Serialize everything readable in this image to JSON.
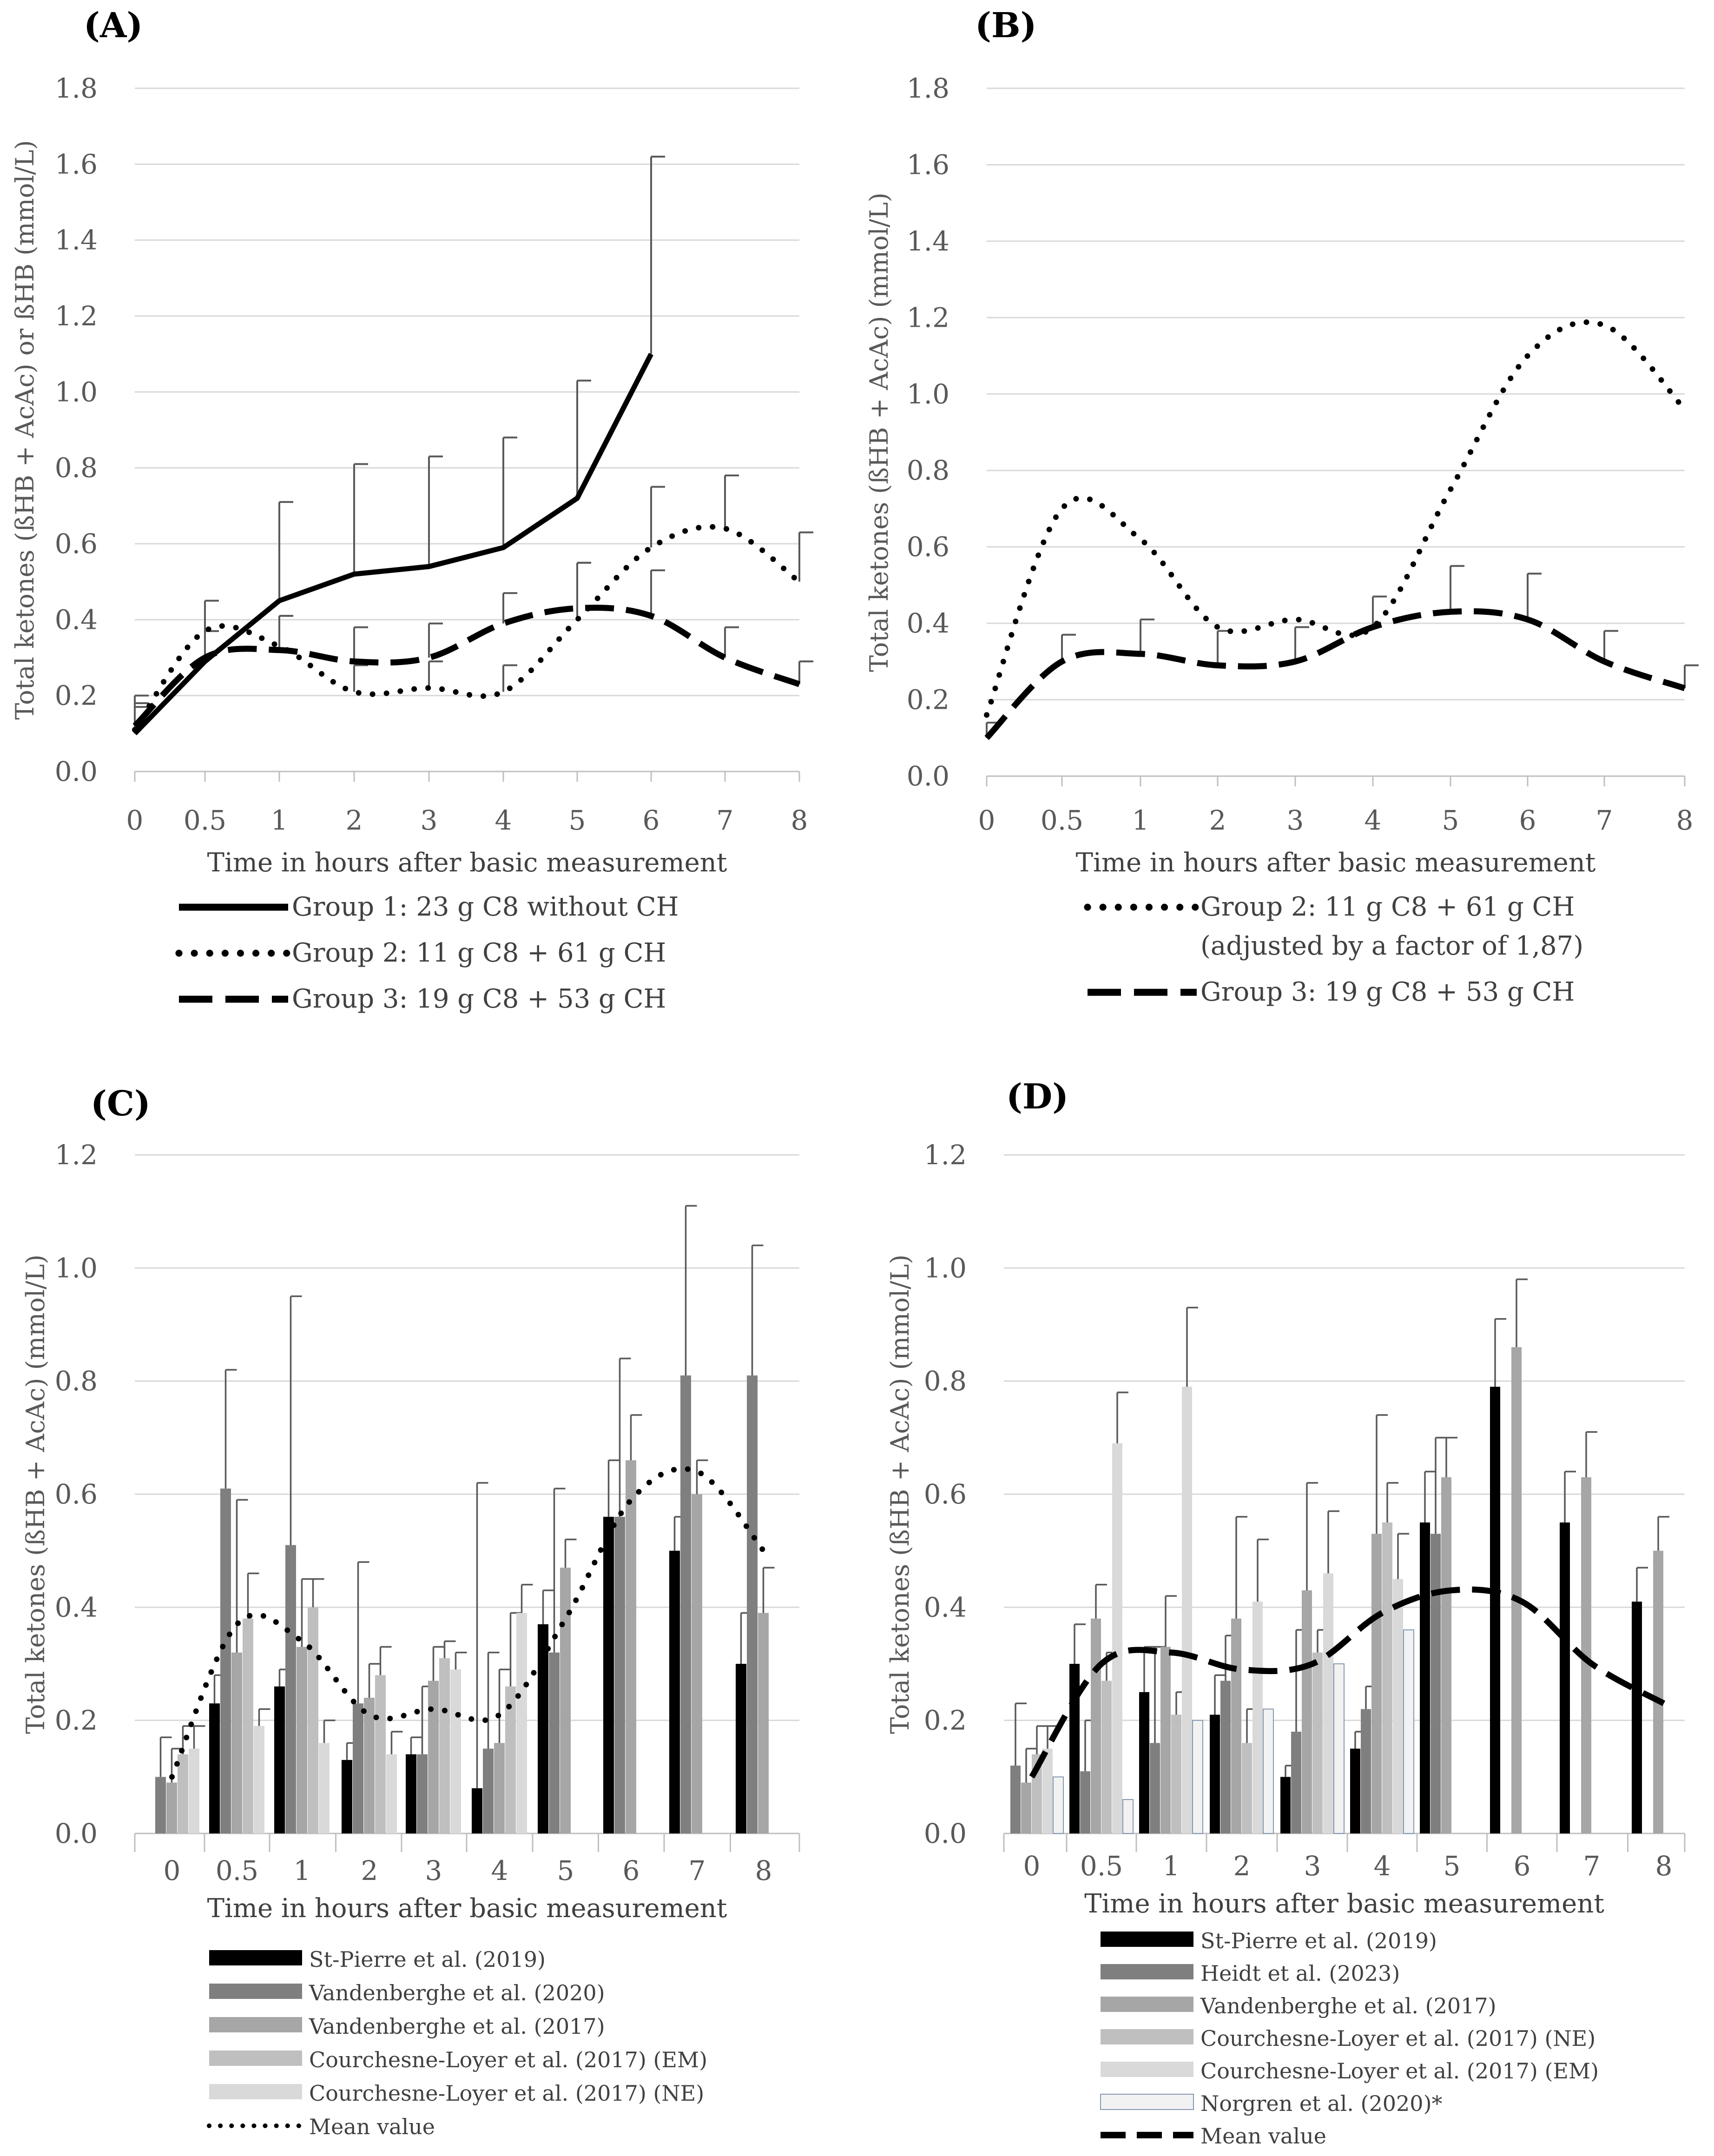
{
  "chart_data": [
    {
      "panel": "(A)",
      "type": "line",
      "ylabel": "Total ketones (ßHB + AcAc) or ßHB (mmol/L)",
      "xlabel": "Time in hours after basic measurement",
      "x": [
        0,
        0.5,
        1,
        2,
        3,
        4,
        5,
        6,
        7,
        8
      ],
      "tick_labels": [
        "0",
        "0.5",
        "1",
        "2",
        "3",
        "4",
        "5",
        "6",
        "7",
        "8"
      ],
      "ylim": [
        0,
        1.8
      ],
      "yticks": [
        "0.0",
        "0.2",
        "0.4",
        "0.6",
        "0.8",
        "1.0",
        "1.2",
        "1.4",
        "1.6",
        "1.8"
      ],
      "grid": true,
      "legend_position": "bottom",
      "series": [
        {
          "name": "Group 1: 23 g C8 without CH",
          "style": "solid",
          "x": [
            0,
            0.5,
            1,
            2,
            3,
            4,
            5,
            6
          ],
          "values": [
            0.1,
            0.29,
            0.45,
            0.52,
            0.54,
            0.59,
            0.72,
            1.1
          ],
          "error": [
            0.1,
            0.16,
            0.26,
            0.29,
            0.29,
            0.29,
            0.31,
            0.52
          ]
        },
        {
          "name": "Group 2: 11 g C8 + 61 g CH",
          "style": "dotted",
          "x": [
            0,
            0.5,
            1,
            2,
            3,
            4,
            5,
            6,
            7,
            8
          ],
          "values": [
            0.11,
            0.37,
            0.33,
            0.21,
            0.22,
            0.21,
            0.4,
            0.59,
            0.64,
            0.5
          ],
          "error": [
            0.07,
            0.08,
            0.08,
            0.07,
            0.07,
            0.07,
            0.15,
            0.16,
            0.14,
            0.13
          ]
        },
        {
          "name": "Group 3: 19 g C8 + 53 g CH",
          "style": "dashed",
          "x": [
            0,
            0.5,
            1,
            2,
            3,
            4,
            5,
            6,
            7,
            8
          ],
          "values": [
            0.12,
            0.3,
            0.32,
            0.29,
            0.3,
            0.39,
            0.43,
            0.41,
            0.3,
            0.23
          ],
          "error": [
            0.05,
            0.07,
            0.09,
            0.09,
            0.09,
            0.08,
            0.12,
            0.12,
            0.08,
            0.06
          ]
        }
      ]
    },
    {
      "panel": "(B)",
      "type": "line",
      "ylabel": "Total ketones (ßHB + AcAc) (mmol/L)",
      "xlabel": "Time in hours after basic measurement",
      "x": [
        0,
        0.5,
        1,
        2,
        3,
        4,
        5,
        6,
        7,
        8
      ],
      "tick_labels": [
        "0",
        "0.5",
        "1",
        "2",
        "3",
        "4",
        "5",
        "6",
        "7",
        "8"
      ],
      "ylim": [
        0,
        1.8
      ],
      "yticks": [
        "0.0",
        "0.2",
        "0.4",
        "0.6",
        "0.8",
        "1.0",
        "1.2",
        "1.4",
        "1.6",
        "1.8"
      ],
      "grid": true,
      "legend_position": "bottom",
      "series": [
        {
          "name": "Group 2: 11 g C8 + 61 g CH",
          "name2": "(adjusted by a factor of 1,87)",
          "style": "dotted",
          "x": [
            0,
            0.5,
            1,
            2,
            3,
            4,
            5,
            6,
            7,
            8
          ],
          "values": [
            0.16,
            0.7,
            0.62,
            0.39,
            0.41,
            0.39,
            0.75,
            1.1,
            1.18,
            0.96
          ],
          "error": []
        },
        {
          "name": "Group 3: 19 g C8 + 53 g CH",
          "style": "dashed",
          "x": [
            0,
            0.5,
            1,
            2,
            3,
            4,
            5,
            6,
            7,
            8
          ],
          "values": [
            0.1,
            0.3,
            0.32,
            0.29,
            0.3,
            0.39,
            0.43,
            0.41,
            0.3,
            0.23
          ],
          "error": [
            0.04,
            0.07,
            0.09,
            0.09,
            0.09,
            0.08,
            0.12,
            0.12,
            0.08,
            0.06
          ]
        }
      ]
    },
    {
      "panel": "(C)",
      "type": "bar",
      "ylabel": "Total ketones (ßHB + AcAc) (mmol/L)",
      "xlabel": "Time in hours after basic measurement",
      "categories": [
        "0",
        "0.5",
        "1",
        "2",
        "3",
        "4",
        "5",
        "6",
        "7",
        "8"
      ],
      "ylim": [
        0,
        1.2
      ],
      "yticks": [
        "0.0",
        "0.2",
        "0.4",
        "0.6",
        "0.8",
        "1.0",
        "1.2"
      ],
      "grid": true,
      "legend_position": "bottom",
      "series": [
        {
          "name": "St-Pierre et al. (2019)",
          "color": "#000000",
          "values": [
            null,
            0.23,
            0.26,
            0.13,
            0.14,
            0.08,
            0.37,
            0.56,
            0.5,
            0.3
          ],
          "error": [
            null,
            0.05,
            0.03,
            0.03,
            0.03,
            0.54,
            0.06,
            0.1,
            0.06,
            0.09
          ]
        },
        {
          "name": "Vandenberghe et al. (2020)",
          "color": "#7f7f7f",
          "values": [
            0.1,
            0.61,
            0.51,
            0.23,
            0.14,
            0.15,
            0.32,
            0.56,
            0.81,
            0.81
          ],
          "error": [
            0.07,
            0.21,
            0.44,
            0.25,
            0.12,
            0.17,
            0.29,
            0.28,
            0.3,
            0.23
          ]
        },
        {
          "name": "Vandenberghe et al. (2017)",
          "color": "#a6a6a6",
          "values": [
            0.09,
            0.32,
            0.33,
            0.24,
            0.27,
            0.16,
            0.47,
            0.66,
            0.6,
            0.39
          ],
          "error": [
            0.06,
            0.27,
            0.12,
            0.06,
            0.06,
            0.13,
            0.05,
            0.08,
            0.06,
            0.08
          ]
        },
        {
          "name": "Courchesne-Loyer et al. (2017) (EM)",
          "color": "#bfbfbf",
          "values": [
            0.14,
            0.38,
            0.4,
            0.28,
            0.31,
            0.26,
            null,
            null,
            null,
            null
          ],
          "error": [
            0.05,
            0.08,
            0.05,
            0.05,
            0.03,
            0.13,
            null,
            null,
            null,
            null
          ]
        },
        {
          "name": "Courchesne-Loyer et al. (2017) (NE)",
          "color": "#d9d9d9",
          "values": [
            0.15,
            0.19,
            0.16,
            0.14,
            0.29,
            0.39,
            null,
            null,
            null,
            null
          ],
          "error": [
            0.04,
            0.03,
            0.04,
            0.04,
            0.03,
            0.05,
            null,
            null,
            null,
            null
          ]
        },
        {
          "name": "Mean value",
          "style": "dotted",
          "kind": "line",
          "values": [
            0.1,
            0.37,
            0.34,
            0.21,
            0.22,
            0.21,
            0.38,
            0.59,
            0.64,
            0.5
          ]
        }
      ]
    },
    {
      "panel": "(D)",
      "type": "bar",
      "ylabel": "Total ketones (ßHB + AcAc) (mmol/L)",
      "xlabel": "Time in hours after basic measurement",
      "categories": [
        "0",
        "0.5",
        "1",
        "2",
        "3",
        "4",
        "5",
        "6",
        "7",
        "8"
      ],
      "ylim": [
        0,
        1.2
      ],
      "yticks": [
        "0.0",
        "0.2",
        "0.4",
        "0.6",
        "0.8",
        "1.0",
        "1.2"
      ],
      "grid": true,
      "legend_position": "bottom",
      "series": [
        {
          "name": "St-Pierre et al. (2019)",
          "color": "#000000",
          "values": [
            null,
            0.3,
            0.25,
            0.21,
            0.1,
            0.15,
            0.55,
            0.79,
            0.55,
            0.41
          ],
          "error": [
            null,
            0.07,
            0.08,
            0.07,
            0.02,
            0.03,
            0.09,
            0.12,
            0.09,
            0.06
          ]
        },
        {
          "name": "Heidt et al. (2023)",
          "color": "#7f7f7f",
          "values": [
            0.12,
            0.11,
            0.16,
            0.27,
            0.18,
            0.22,
            0.53,
            null,
            null,
            null
          ],
          "error": [
            0.11,
            0.09,
            0.17,
            0.08,
            0.18,
            0.04,
            0.17,
            null,
            null,
            null
          ]
        },
        {
          "name": "Vandenberghe et al. (2017)",
          "color": "#a6a6a6",
          "values": [
            0.09,
            0.38,
            0.33,
            0.38,
            0.43,
            0.53,
            0.63,
            0.86,
            0.63,
            0.5
          ],
          "error": [
            0.06,
            0.06,
            0.09,
            0.18,
            0.19,
            0.21,
            0.07,
            0.12,
            0.08,
            0.06
          ]
        },
        {
          "name": "Courchesne-Loyer et al. (2017) (NE)",
          "color": "#bfbfbf",
          "values": [
            0.14,
            0.27,
            0.21,
            0.16,
            0.32,
            0.55,
            null,
            null,
            null,
            null
          ],
          "error": [
            0.05,
            0.05,
            0.04,
            0.06,
            0.04,
            0.07,
            null,
            null,
            null,
            null
          ]
        },
        {
          "name": "Courchesne-Loyer et al. (2017) (EM)",
          "color": "#d9d9d9",
          "values": [
            0.15,
            0.69,
            0.79,
            0.41,
            0.46,
            0.45,
            null,
            null,
            null,
            null
          ],
          "error": [
            0.04,
            0.09,
            0.14,
            0.11,
            0.11,
            0.08,
            null,
            null,
            null,
            null
          ]
        },
        {
          "name": "Norgren et al. (2020)*",
          "color": "#f2f2f2",
          "outline": "#8497b0",
          "values": [
            0.1,
            0.06,
            0.2,
            0.22,
            0.3,
            0.36,
            null,
            null,
            null,
            null
          ],
          "error": [
            null,
            null,
            null,
            null,
            null,
            null,
            null,
            null,
            null,
            null
          ]
        },
        {
          "name": "Mean value",
          "style": "dashed",
          "kind": "line",
          "values": [
            0.1,
            0.3,
            0.32,
            0.29,
            0.3,
            0.39,
            0.43,
            0.41,
            0.3,
            0.23
          ]
        }
      ]
    }
  ]
}
